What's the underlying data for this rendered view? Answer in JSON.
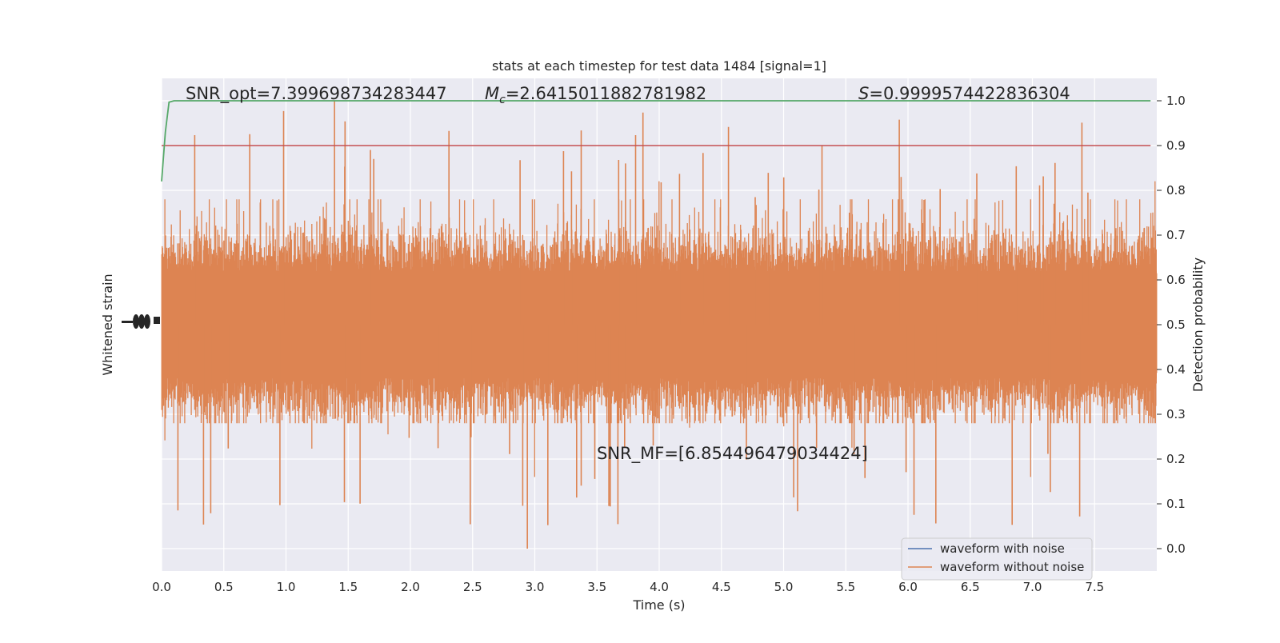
{
  "chart_data": {
    "type": "line",
    "title": "stats at each timestep for test data 1484 [signal=1]",
    "xlabel": "Time (s)",
    "ylabel_left": "Whitened strain",
    "ylabel_right": "Detection probability",
    "xlim": [
      0.0,
      8.0
    ],
    "ylim_right": [
      -0.05,
      1.05
    ],
    "x_ticks": [
      "0.0",
      "0.5",
      "1.0",
      "1.5",
      "2.0",
      "2.5",
      "3.0",
      "3.5",
      "4.0",
      "4.5",
      "5.0",
      "5.5",
      "6.0",
      "6.5",
      "7.0",
      "7.5"
    ],
    "y_ticks_right": [
      "0.0",
      "0.1",
      "0.2",
      "0.3",
      "0.4",
      "0.5",
      "0.6",
      "0.7",
      "0.8",
      "0.9",
      "1.0"
    ],
    "grid": true,
    "legend_position": "lower-right",
    "annotations": {
      "snr_opt": "SNR_opt=7.399698734283447",
      "mc_symbol": "M",
      "mc_subscript": "c",
      "mc_value": "=2.6415011882781982",
      "s_symbol": "S",
      "s_value": "=0.9999574422836304",
      "snr_mf": "SNR_MF=[6.854496479034424]"
    },
    "series": [
      {
        "name": "waveform with noise",
        "color": "#4c72b0",
        "kind": "strain"
      },
      {
        "name": "waveform without noise",
        "color": "#dd8452",
        "kind": "strain",
        "band_center": 0.5,
        "band_core": [
          0.38,
          0.62
        ],
        "typical_range": [
          0.28,
          0.78
        ],
        "extremes": [
          0.0,
          1.0
        ]
      },
      {
        "color": "#55a868",
        "kind": "detection_probability",
        "x": [
          0.0,
          0.03,
          0.06,
          0.1,
          0.2,
          7.95
        ],
        "values": [
          0.82,
          0.93,
          0.997,
          1.0,
          1.0,
          1.0
        ]
      },
      {
        "color": "#c44e52",
        "kind": "threshold",
        "value": 0.9
      }
    ],
    "colors": {
      "background": "#eaeaf2",
      "grid": "#ffffff",
      "text": "#262626"
    }
  }
}
